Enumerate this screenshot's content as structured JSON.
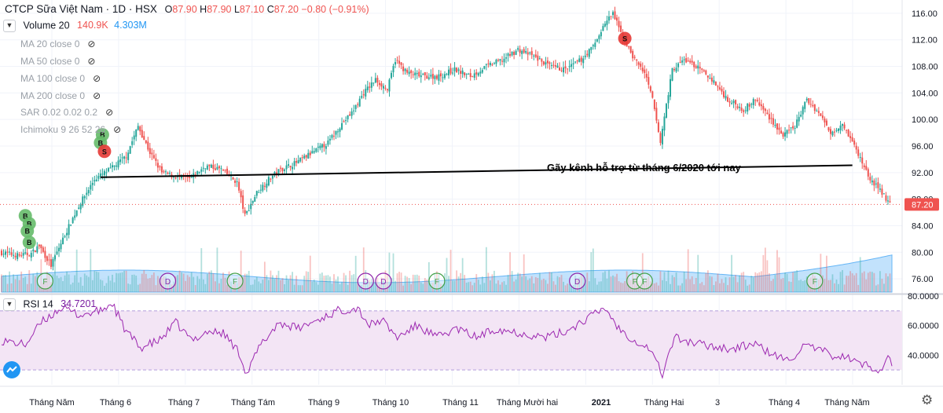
{
  "header": {
    "symbol": "CTCP Sữa Việt Nam",
    "interval": "1D",
    "exchange": "HSX",
    "open_label": "O",
    "open": "87.90",
    "high_label": "H",
    "high": "87.90",
    "low_label": "L",
    "low": "87.10",
    "close_label": "C",
    "close": "87.20",
    "change": "−0.80 (−0.91%)"
  },
  "volume_indicator": {
    "label": "Volume 20",
    "value1": "140.9K",
    "value2": "4.303M",
    "collapse_icon": "chevron-down-icon"
  },
  "indicators": [
    {
      "label": "MA 20 close 0",
      "icon": "eye-off-icon"
    },
    {
      "label": "MA 50 close 0",
      "icon": "eye-off-icon"
    },
    {
      "label": "MA 100 close 0",
      "icon": "eye-off-icon"
    },
    {
      "label": "MA 200 close 0",
      "icon": "eye-off-icon"
    },
    {
      "label": "SAR 0.02 0.02 0.2",
      "icon": "eye-off-icon"
    },
    {
      "label": "Ichimoku 9 26 52 26",
      "icon": "eye-off-icon"
    }
  ],
  "rsi": {
    "label": "RSI 14",
    "value": "34.7201"
  },
  "annotation": "Gãy  kênh hỗ  trợ từ tháng  6/2020 tới  nay",
  "last_price_tag": "87.20",
  "colors": {
    "up": "#26a69a",
    "down": "#ef5350",
    "rsi_line": "#9c27b0",
    "rsi_band": "#f3e5f5",
    "volume_area": "#90caf9"
  },
  "chart_data": {
    "type": "candlestick",
    "price_axis": {
      "ticks": [
        "116.00",
        "112.00",
        "108.00",
        "104.00",
        "100.00",
        "96.00",
        "92.00",
        "88.00",
        "84.00",
        "80.00",
        "76.00"
      ],
      "range": [
        74,
        118
      ]
    },
    "rsi_axis": {
      "ticks": [
        "80.0000",
        "60.0000",
        "40.0000"
      ],
      "band": [
        30,
        70
      ],
      "range": [
        20,
        80
      ]
    },
    "time_axis": [
      "Tháng Năm",
      "Tháng 6",
      "Tháng 7",
      "Tháng Tám",
      "Tháng 9",
      "Tháng 10",
      "Tháng 11",
      "Tháng Mười hai",
      "2021",
      "Tháng Hai",
      "3",
      "Tháng 4",
      "Tháng Năm"
    ],
    "price_anchors": [
      [
        0,
        80
      ],
      [
        10,
        79.5
      ],
      [
        16,
        79.8
      ],
      [
        20,
        81
      ],
      [
        26,
        78
      ],
      [
        32,
        82
      ],
      [
        40,
        87
      ],
      [
        48,
        91
      ],
      [
        56,
        92.5
      ],
      [
        64,
        94.5
      ],
      [
        70,
        99
      ],
      [
        76,
        95
      ],
      [
        82,
        92
      ],
      [
        88,
        91.5
      ],
      [
        96,
        91
      ],
      [
        104,
        93
      ],
      [
        112,
        92.5
      ],
      [
        120,
        90.5
      ],
      [
        124,
        85.5
      ],
      [
        130,
        89
      ],
      [
        136,
        91
      ],
      [
        142,
        92.5
      ],
      [
        150,
        93.5
      ],
      [
        158,
        95
      ],
      [
        166,
        96.5
      ],
      [
        172,
        99
      ],
      [
        178,
        101
      ],
      [
        184,
        104
      ],
      [
        190,
        106
      ],
      [
        196,
        104.5
      ],
      [
        200,
        109
      ],
      [
        206,
        107
      ],
      [
        214,
        106.5
      ],
      [
        222,
        106.5
      ],
      [
        230,
        107.5
      ],
      [
        238,
        106.5
      ],
      [
        246,
        108
      ],
      [
        254,
        109
      ],
      [
        262,
        110.5
      ],
      [
        270,
        109.5
      ],
      [
        278,
        108
      ],
      [
        286,
        107.5
      ],
      [
        294,
        109
      ],
      [
        300,
        111
      ],
      [
        306,
        114.5
      ],
      [
        310,
        116
      ],
      [
        314,
        113
      ],
      [
        320,
        109.5
      ],
      [
        326,
        107
      ],
      [
        330,
        103
      ],
      [
        334,
        96.5
      ],
      [
        336,
        100.5
      ],
      [
        340,
        107.5
      ],
      [
        346,
        109
      ],
      [
        352,
        108
      ],
      [
        360,
        106
      ],
      [
        368,
        103
      ],
      [
        376,
        101.5
      ],
      [
        382,
        103
      ],
      [
        390,
        100
      ],
      [
        396,
        97.5
      ],
      [
        402,
        99
      ],
      [
        408,
        103
      ],
      [
        414,
        101
      ],
      [
        420,
        98
      ],
      [
        426,
        99.5
      ],
      [
        432,
        96
      ],
      [
        436,
        93.5
      ],
      [
        440,
        91
      ],
      [
        446,
        89
      ],
      [
        450,
        87.2
      ]
    ],
    "rsi_anchors": [
      [
        0,
        50
      ],
      [
        12,
        47
      ],
      [
        20,
        62
      ],
      [
        30,
        72
      ],
      [
        40,
        67
      ],
      [
        50,
        70
      ],
      [
        56,
        75
      ],
      [
        62,
        58
      ],
      [
        70,
        45
      ],
      [
        80,
        50
      ],
      [
        88,
        62
      ],
      [
        96,
        50
      ],
      [
        104,
        56
      ],
      [
        112,
        55
      ],
      [
        120,
        42
      ],
      [
        124,
        27
      ],
      [
        130,
        45
      ],
      [
        140,
        62
      ],
      [
        150,
        58
      ],
      [
        160,
        64
      ],
      [
        170,
        70
      ],
      [
        180,
        72
      ],
      [
        186,
        60
      ],
      [
        192,
        64
      ],
      [
        200,
        52
      ],
      [
        210,
        60
      ],
      [
        220,
        52
      ],
      [
        230,
        58
      ],
      [
        240,
        52
      ],
      [
        250,
        58
      ],
      [
        262,
        55
      ],
      [
        275,
        52
      ],
      [
        285,
        56
      ],
      [
        295,
        64
      ],
      [
        305,
        72
      ],
      [
        312,
        58
      ],
      [
        320,
        50
      ],
      [
        328,
        44
      ],
      [
        334,
        27
      ],
      [
        340,
        52
      ],
      [
        350,
        48
      ],
      [
        360,
        46
      ],
      [
        370,
        44
      ],
      [
        380,
        48
      ],
      [
        390,
        40
      ],
      [
        398,
        36
      ],
      [
        405,
        46
      ],
      [
        412,
        44
      ],
      [
        420,
        40
      ],
      [
        428,
        38
      ],
      [
        434,
        34
      ],
      [
        438,
        33
      ],
      [
        444,
        30
      ],
      [
        448,
        38
      ],
      [
        450,
        34.7
      ]
    ],
    "signals": [
      {
        "type": "B",
        "x": 12,
        "price": 85.5
      },
      {
        "type": "B",
        "x": 14,
        "price": 84.3
      },
      {
        "type": "B",
        "x": 13,
        "price": 83.2
      },
      {
        "type": "B",
        "x": 14,
        "price": 81.5
      },
      {
        "type": "B",
        "x": 51,
        "price": 97.7
      },
      {
        "type": "B",
        "x": 50,
        "price": 96.5
      },
      {
        "type": "S",
        "x": 52,
        "price": 95.2
      },
      {
        "type": "S",
        "x": 315,
        "price": 112.2
      }
    ],
    "events": [
      {
        "type": "F",
        "x": 22
      },
      {
        "type": "D",
        "x": 84
      },
      {
        "type": "F",
        "x": 118
      },
      {
        "type": "D",
        "x": 184
      },
      {
        "type": "D",
        "x": 193
      },
      {
        "type": "F",
        "x": 220
      },
      {
        "type": "D",
        "x": 291
      },
      {
        "type": "F",
        "x": 320
      },
      {
        "type": "F",
        "x": 325
      },
      {
        "type": "F",
        "x": 411
      }
    ],
    "trendline": {
      "from": [
        50,
        91.3
      ],
      "to": [
        430,
        93.1
      ]
    },
    "last_price": 87.2
  }
}
